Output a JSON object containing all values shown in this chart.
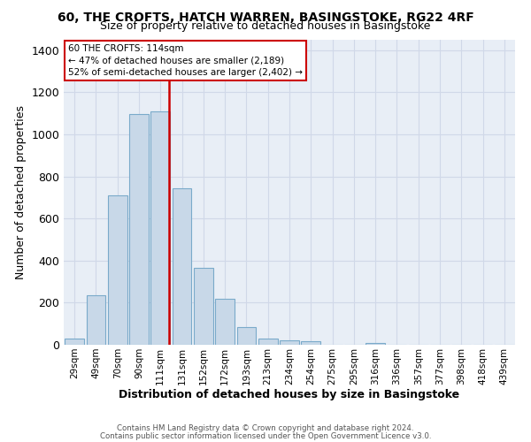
{
  "title_line1": "60, THE CROFTS, HATCH WARREN, BASINGSTOKE, RG22 4RF",
  "title_line2": "Size of property relative to detached houses in Basingstoke",
  "xlabel": "Distribution of detached houses by size in Basingstoke",
  "ylabel": "Number of detached properties",
  "footer_line1": "Contains HM Land Registry data © Crown copyright and database right 2024.",
  "footer_line2": "Contains public sector information licensed under the Open Government Licence v3.0.",
  "bar_labels": [
    "29sqm",
    "49sqm",
    "70sqm",
    "90sqm",
    "111sqm",
    "131sqm",
    "152sqm",
    "172sqm",
    "193sqm",
    "213sqm",
    "234sqm",
    "254sqm",
    "275sqm",
    "295sqm",
    "316sqm",
    "336sqm",
    "357sqm",
    "377sqm",
    "398sqm",
    "418sqm",
    "439sqm"
  ],
  "bar_heights": [
    30,
    235,
    710,
    1095,
    1110,
    745,
    365,
    220,
    85,
    30,
    20,
    15,
    0,
    0,
    10,
    0,
    0,
    0,
    0,
    0,
    0
  ],
  "bar_color": "#c8d8e8",
  "bar_edge_color": "#7aaaca",
  "property_line_label": "60 THE CROFTS: 114sqm",
  "annotation_line1": "← 47% of detached houses are smaller (2,189)",
  "annotation_line2": "52% of semi-detached houses are larger (2,402) →",
  "annotation_box_color": "#ffffff",
  "annotation_box_edge_color": "#cc0000",
  "vline_color": "#cc0000",
  "vline_x": 4.42,
  "ylim": [
    0,
    1450
  ],
  "yticks": [
    0,
    200,
    400,
    600,
    800,
    1000,
    1200,
    1400
  ],
  "grid_color": "#d0d8e8",
  "background_color": "#e8eef6"
}
